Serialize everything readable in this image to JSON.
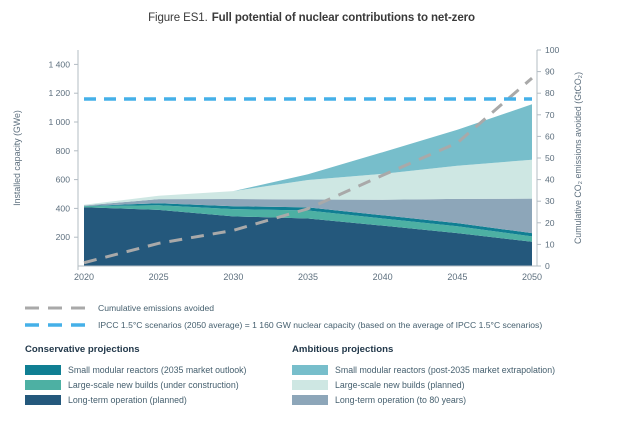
{
  "title": {
    "prefix": "Figure ES1.",
    "text": "Full potential of nuclear contributions to net-zero"
  },
  "colors": {
    "smr_conservative": "#107f93",
    "large_scale_under_construction": "#4db0a3",
    "lto_planned": "#24587c",
    "smr_ambitious": "#77becb",
    "large_scale_planned": "#cee7e3",
    "lto_80_years": "#8da6b9",
    "emissions_line": "#a9a9a9",
    "ipcc_line": "#45b0e8",
    "axis_text": "#5d6f7e",
    "axis_line": "#b3bcc3"
  },
  "chart_data": {
    "type": "area",
    "title": "Full potential of nuclear contributions to net-zero",
    "x": [
      2020,
      2025,
      2030,
      2035,
      2040,
      2045,
      2050
    ],
    "x_tick_labels": [
      "2020",
      "2025",
      "2030",
      "2035",
      "2040",
      "2045",
      "2050"
    ],
    "left_axis": {
      "label": "Installed capacity (GWe)",
      "range": [
        0,
        1500
      ],
      "tick_values": [
        200,
        400,
        600,
        800,
        1000,
        1200,
        1400
      ],
      "tick_labels": [
        "200",
        "400",
        "600",
        "800",
        "1 000",
        "1 200",
        "1 400"
      ]
    },
    "right_axis": {
      "label": "Cumulative CO₂ emissions avoided (GtCO₂)",
      "range": [
        0,
        100
      ],
      "tick_values": [
        0,
        10,
        20,
        30,
        40,
        50,
        60,
        70,
        80,
        90,
        100
      ],
      "tick_labels": [
        "0",
        "10",
        "20",
        "30",
        "40",
        "50",
        "60",
        "70",
        "80",
        "90",
        "100"
      ]
    },
    "stacked_series": [
      {
        "name": "Long-term operation (planned)",
        "group": "Conservative projections",
        "color": "#24587c",
        "values": [
          408,
          390,
          345,
          330,
          280,
          228,
          168
        ]
      },
      {
        "name": "Large-scale new builds (under construction)",
        "group": "Conservative projections",
        "color": "#4db0a3",
        "values": [
          8,
          32,
          50,
          55,
          50,
          48,
          38
        ]
      },
      {
        "name": "Small modular reactors (2035 market outlook)",
        "group": "Conservative projections",
        "color": "#107f93",
        "values": [
          0,
          14,
          20,
          22,
          22,
          22,
          22
        ]
      },
      {
        "name": "Long-term operation (to 80 years)",
        "group": "Ambitious projections",
        "color": "#8da6b9",
        "values": [
          4,
          28,
          50,
          55,
          108,
          168,
          240
        ]
      },
      {
        "name": "Large-scale new builds (planned)",
        "group": "Ambitious projections",
        "color": "#cee7e3",
        "values": [
          5,
          24,
          55,
          135,
          180,
          230,
          270
        ]
      },
      {
        "name": "Small modular reactors (post-2035 market extrapolation)",
        "group": "Ambitious projections",
        "color": "#77becb",
        "values": [
          0,
          0,
          0,
          40,
          150,
          250,
          385
        ]
      }
    ],
    "lines": [
      {
        "name": "Cumulative emissions avoided",
        "axis": "right",
        "color": "#a9a9a9",
        "dashed": true,
        "width": 3,
        "values": [
          1.5,
          10.5,
          16.5,
          26.5,
          42,
          57,
          87
        ]
      },
      {
        "name": "IPCC 1.5°C scenarios (2050 average)",
        "axis": "left",
        "color": "#45b0e8",
        "dashed": true,
        "width": 3.5,
        "constant": 1160
      }
    ]
  },
  "line_legend": [
    {
      "label": "Cumulative emissions avoided",
      "color": "#a9a9a9",
      "width": 3
    },
    {
      "label": "IPCC 1.5°C scenarios (2050 average) = 1 160 GW nuclear capacity (based on the average of IPCC 1.5°C scenarios)",
      "color": "#45b0e8",
      "width": 3.5
    }
  ],
  "legend_groups": [
    {
      "title": "Conservative projections",
      "items": [
        {
          "label": "Small modular reactors (2035 market outlook)",
          "color": "#107f93"
        },
        {
          "label": "Large-scale new builds (under construction)",
          "color": "#4db0a3"
        },
        {
          "label": "Long-term operation (planned)",
          "color": "#24587c"
        }
      ]
    },
    {
      "title": "Ambitious projections",
      "items": [
        {
          "label": "Small modular reactors (post-2035 market extrapolation)",
          "color": "#77becb"
        },
        {
          "label": "Large-scale new builds (planned)",
          "color": "#cee7e3"
        },
        {
          "label": "Long-term operation (to 80 years)",
          "color": "#8da6b9"
        }
      ]
    }
  ]
}
